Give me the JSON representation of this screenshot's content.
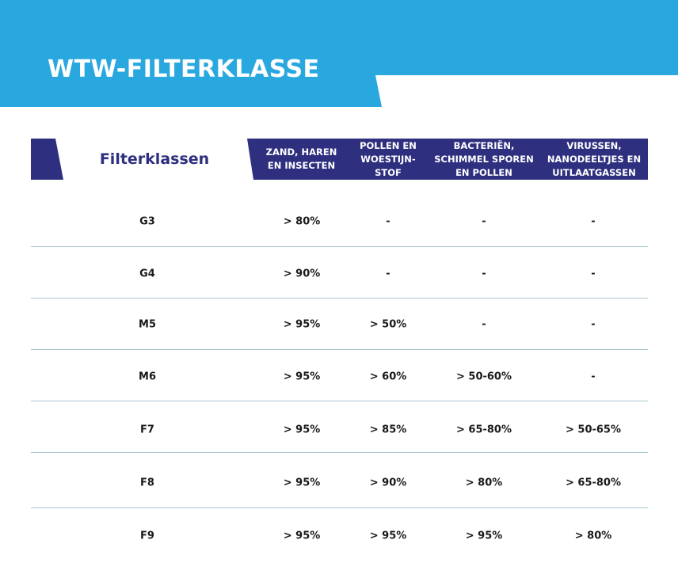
{
  "header": {
    "title": "WTW-FILTERKLASSE"
  },
  "table": {
    "columns": [
      "Filterklassen",
      "ZAND, HAREN EN INSECTEN",
      "POLLEN EN WOESTIJN-STOF",
      "BACTERIËN, SCHIMMEL SPOREN EN POLLEN",
      "VIRUSSEN, NANODEELTJES EN UITLAATGASSEN"
    ],
    "rows": [
      [
        "G3",
        "> 80%",
        "-",
        "-",
        "-"
      ],
      [
        "G4",
        "> 90%",
        "-",
        "-",
        "-"
      ],
      [
        "M5",
        "> 95%",
        "> 50%",
        "-",
        "-"
      ],
      [
        "M6",
        "> 95%",
        "> 60%",
        "> 50-60%",
        "-"
      ],
      [
        "F7",
        "> 95%",
        "> 85%",
        "> 65-80%",
        "> 50-65%"
      ],
      [
        "F8",
        "> 95%",
        "> 90%",
        "> 80%",
        "> 65-80%"
      ],
      [
        "F9",
        "> 95%",
        "> 95%",
        "> 95%",
        "> 80%"
      ]
    ]
  }
}
